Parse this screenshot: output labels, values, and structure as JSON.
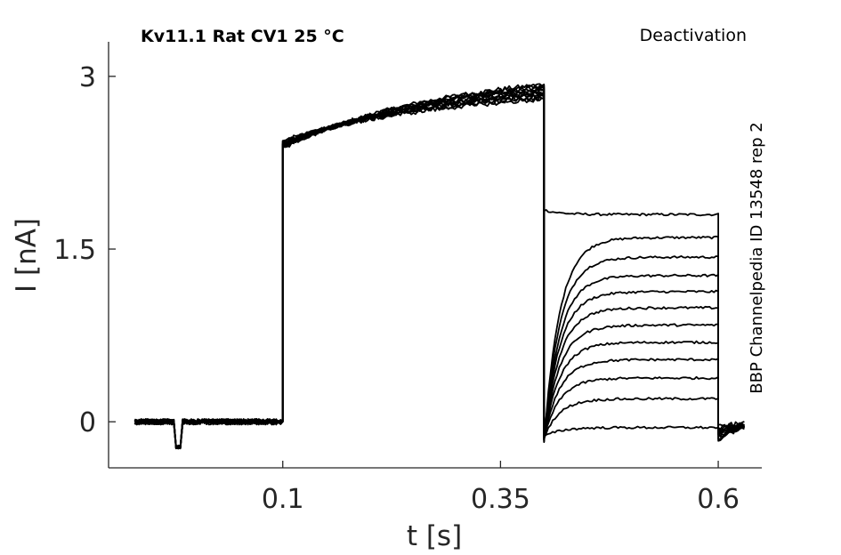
{
  "chart_data": {
    "type": "line",
    "title": "Kv11.1  Rat  CV1  25 °C",
    "protocol": "Deactivation",
    "source": "BBP Channelpedia ID 13548 rep 2",
    "xlabel": "t [s]",
    "ylabel": "I [nA]",
    "xlim": [
      -0.1,
      0.65
    ],
    "ylim": [
      -0.4,
      3.3
    ],
    "xticks": [
      0.1,
      0.35,
      0.6
    ],
    "xtick_labels": [
      "0.1",
      "0.35",
      "0.6"
    ],
    "yticks": [
      0,
      1.5,
      3
    ],
    "ytick_labels": [
      "0",
      "1.5",
      "3"
    ],
    "grid": false,
    "legend": "none",
    "line_color": "#000000",
    "protocol_times": {
      "holding_end": 0.1,
      "prepulse_end": 0.4,
      "test_end": 0.6,
      "trace_start": -0.07,
      "trace_end": 0.63
    },
    "holding_current": 0,
    "prepulse_current": {
      "start_range": [
        2.38,
        2.44
      ],
      "end_range": [
        2.8,
        2.93
      ]
    },
    "test_steady_currents": [
      1.8,
      1.6,
      1.43,
      1.27,
      1.13,
      0.99,
      0.84,
      0.69,
      0.54,
      0.38,
      0.2,
      -0.05
    ],
    "test_initial_dip": -0.18,
    "tail_range": [
      -0.15,
      -0.05
    ],
    "artifact": {
      "t": -0.02,
      "width": 0.008,
      "value": -0.22
    }
  }
}
